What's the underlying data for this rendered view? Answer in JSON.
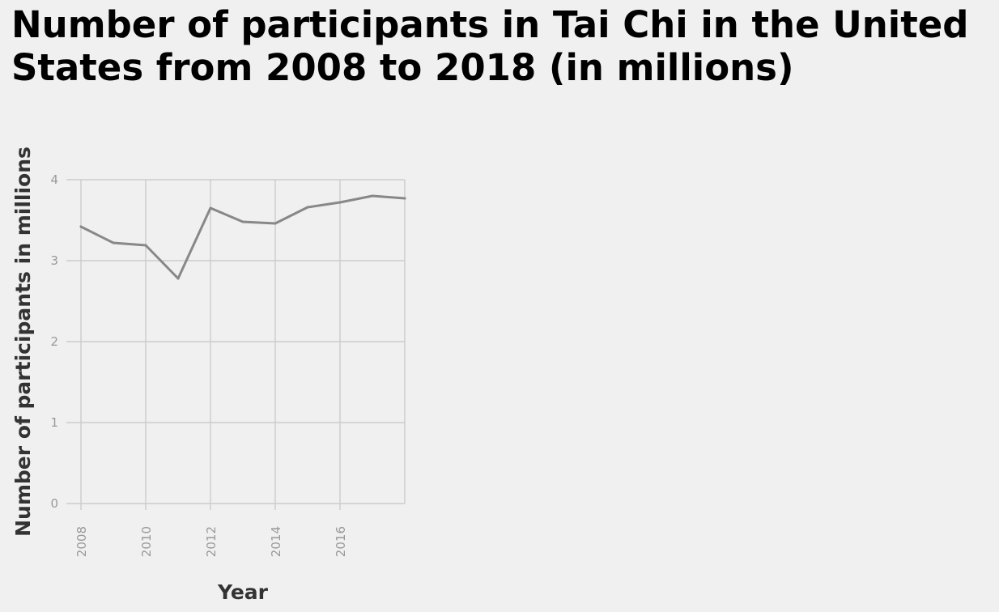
{
  "chart_data": {
    "type": "line",
    "title": "Number of participants in Tai Chi in the United States from 2008 to 2018 (in millions)",
    "xlabel": "Year",
    "ylabel": "Number of participants in millions",
    "x": [
      2008,
      2009,
      2010,
      2011,
      2012,
      2013,
      2014,
      2015,
      2016,
      2017,
      2018
    ],
    "series": [
      {
        "values": [
          3.42,
          3.22,
          3.19,
          2.78,
          3.65,
          3.48,
          3.46,
          3.66,
          3.72,
          3.8,
          3.77
        ]
      }
    ],
    "xlim": [
      2008,
      2018
    ],
    "ylim": [
      0,
      4
    ],
    "x_ticks": [
      "2008",
      "2010",
      "2012",
      "2014",
      "2016"
    ],
    "y_ticks": [
      "0",
      "1",
      "2",
      "3",
      "4"
    ],
    "grid": true,
    "line_color": "#888888",
    "grid_color": "#cccccc"
  }
}
